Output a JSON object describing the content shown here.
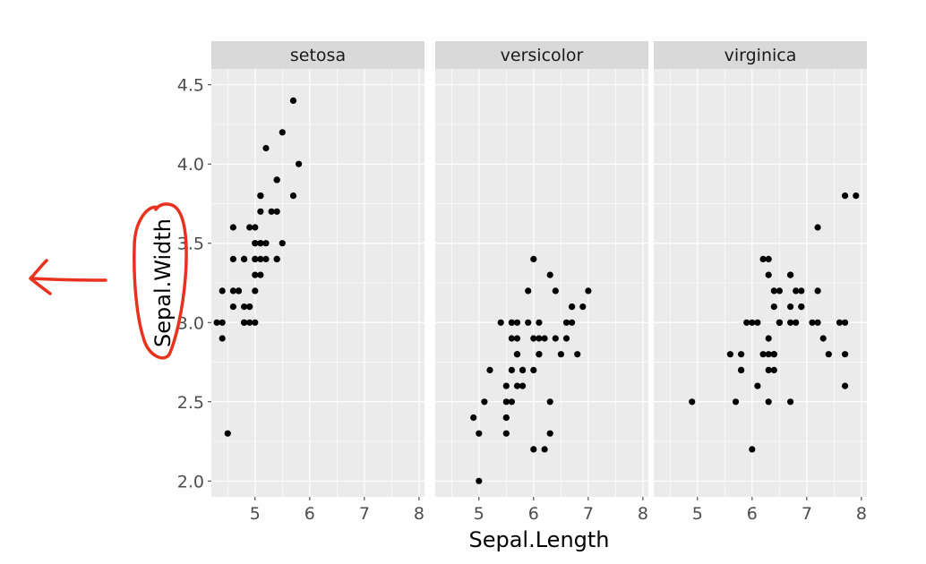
{
  "chart_data": {
    "type": "scatter",
    "facet_by": "Species",
    "xlabel": "Sepal.Length",
    "ylabel": "Sepal.Width",
    "xlim": [
      4.2,
      8.1
    ],
    "ylim": [
      1.9,
      4.6
    ],
    "x_ticks": [
      5,
      6,
      7,
      8
    ],
    "y_ticks": [
      2.0,
      2.5,
      3.0,
      3.5,
      4.0,
      4.5
    ],
    "y_tick_labels": [
      "2.0",
      "2.5",
      "3.0",
      "3.5",
      "4.0",
      "4.5"
    ],
    "grid": true,
    "point_color": "#000000",
    "panel_background": "#ebebeb",
    "strip_background": "#d9d9d9",
    "grid_color": "#ffffff",
    "panels": [
      {
        "label": "setosa",
        "points": [
          [
            5.1,
            3.5
          ],
          [
            4.9,
            3.0
          ],
          [
            4.7,
            3.2
          ],
          [
            4.6,
            3.1
          ],
          [
            5.0,
            3.6
          ],
          [
            5.4,
            3.9
          ],
          [
            4.6,
            3.4
          ],
          [
            5.0,
            3.4
          ],
          [
            4.4,
            2.9
          ],
          [
            4.9,
            3.1
          ],
          [
            5.4,
            3.7
          ],
          [
            4.8,
            3.4
          ],
          [
            4.8,
            3.0
          ],
          [
            4.3,
            3.0
          ],
          [
            5.8,
            4.0
          ],
          [
            5.7,
            4.4
          ],
          [
            5.4,
            3.9
          ],
          [
            5.1,
            3.5
          ],
          [
            5.7,
            3.8
          ],
          [
            5.1,
            3.8
          ],
          [
            5.4,
            3.4
          ],
          [
            5.1,
            3.7
          ],
          [
            4.6,
            3.6
          ],
          [
            5.1,
            3.3
          ],
          [
            4.8,
            3.4
          ],
          [
            5.0,
            3.0
          ],
          [
            5.0,
            3.4
          ],
          [
            5.2,
            3.5
          ],
          [
            5.2,
            3.4
          ],
          [
            4.7,
            3.2
          ],
          [
            4.8,
            3.1
          ],
          [
            5.4,
            3.4
          ],
          [
            5.2,
            4.1
          ],
          [
            5.5,
            4.2
          ],
          [
            4.9,
            3.1
          ],
          [
            5.0,
            3.2
          ],
          [
            5.5,
            3.5
          ],
          [
            4.9,
            3.6
          ],
          [
            4.4,
            3.0
          ],
          [
            5.1,
            3.4
          ],
          [
            5.0,
            3.5
          ],
          [
            4.5,
            2.3
          ],
          [
            4.4,
            3.2
          ],
          [
            5.0,
            3.5
          ],
          [
            5.1,
            3.8
          ],
          [
            4.8,
            3.0
          ],
          [
            5.1,
            3.8
          ],
          [
            4.6,
            3.2
          ],
          [
            5.3,
            3.7
          ],
          [
            5.0,
            3.3
          ]
        ]
      },
      {
        "label": "versicolor",
        "points": [
          [
            7.0,
            3.2
          ],
          [
            6.4,
            3.2
          ],
          [
            6.9,
            3.1
          ],
          [
            5.5,
            2.3
          ],
          [
            6.5,
            2.8
          ],
          [
            5.7,
            2.8
          ],
          [
            6.3,
            3.3
          ],
          [
            4.9,
            2.4
          ],
          [
            6.6,
            2.9
          ],
          [
            5.2,
            2.7
          ],
          [
            5.0,
            2.0
          ],
          [
            5.9,
            3.0
          ],
          [
            6.0,
            2.2
          ],
          [
            6.1,
            2.9
          ],
          [
            5.6,
            2.9
          ],
          [
            6.7,
            3.1
          ],
          [
            5.6,
            3.0
          ],
          [
            5.8,
            2.7
          ],
          [
            6.2,
            2.2
          ],
          [
            5.6,
            2.5
          ],
          [
            5.9,
            3.2
          ],
          [
            6.1,
            2.8
          ],
          [
            6.3,
            2.5
          ],
          [
            6.1,
            2.8
          ],
          [
            6.4,
            2.9
          ],
          [
            6.6,
            3.0
          ],
          [
            6.8,
            2.8
          ],
          [
            6.7,
            3.0
          ],
          [
            6.0,
            2.9
          ],
          [
            5.7,
            2.6
          ],
          [
            5.5,
            2.4
          ],
          [
            5.5,
            2.4
          ],
          [
            5.8,
            2.7
          ],
          [
            6.0,
            2.7
          ],
          [
            5.4,
            3.0
          ],
          [
            6.0,
            3.4
          ],
          [
            6.7,
            3.1
          ],
          [
            6.3,
            2.3
          ],
          [
            5.6,
            3.0
          ],
          [
            5.5,
            2.5
          ],
          [
            5.5,
            2.6
          ],
          [
            6.1,
            3.0
          ],
          [
            5.8,
            2.6
          ],
          [
            5.0,
            2.3
          ],
          [
            5.6,
            2.7
          ],
          [
            5.7,
            3.0
          ],
          [
            5.7,
            2.9
          ],
          [
            6.2,
            2.9
          ],
          [
            5.1,
            2.5
          ],
          [
            5.7,
            2.8
          ]
        ]
      },
      {
        "label": "virginica",
        "points": [
          [
            6.3,
            3.3
          ],
          [
            5.8,
            2.7
          ],
          [
            7.1,
            3.0
          ],
          [
            6.3,
            2.9
          ],
          [
            6.5,
            3.0
          ],
          [
            7.6,
            3.0
          ],
          [
            4.9,
            2.5
          ],
          [
            7.3,
            2.9
          ],
          [
            6.7,
            2.5
          ],
          [
            7.2,
            3.6
          ],
          [
            6.5,
            3.2
          ],
          [
            6.4,
            2.7
          ],
          [
            6.8,
            3.0
          ],
          [
            5.7,
            2.5
          ],
          [
            5.8,
            2.8
          ],
          [
            6.4,
            3.2
          ],
          [
            6.5,
            3.0
          ],
          [
            7.7,
            3.8
          ],
          [
            7.7,
            2.6
          ],
          [
            6.0,
            2.2
          ],
          [
            6.9,
            3.2
          ],
          [
            5.6,
            2.8
          ],
          [
            7.7,
            2.8
          ],
          [
            6.3,
            2.7
          ],
          [
            6.7,
            3.3
          ],
          [
            7.2,
            3.2
          ],
          [
            6.2,
            2.8
          ],
          [
            6.1,
            3.0
          ],
          [
            6.4,
            2.8
          ],
          [
            7.2,
            3.0
          ],
          [
            7.4,
            2.8
          ],
          [
            7.9,
            3.8
          ],
          [
            6.4,
            2.8
          ],
          [
            6.3,
            2.8
          ],
          [
            6.1,
            2.6
          ],
          [
            7.7,
            3.0
          ],
          [
            6.3,
            3.4
          ],
          [
            6.4,
            3.1
          ],
          [
            6.0,
            3.0
          ],
          [
            6.9,
            3.1
          ],
          [
            6.7,
            3.1
          ],
          [
            6.9,
            3.1
          ],
          [
            5.8,
            2.7
          ],
          [
            6.8,
            3.2
          ],
          [
            6.7,
            3.3
          ],
          [
            6.7,
            3.0
          ],
          [
            6.3,
            2.5
          ],
          [
            6.5,
            3.0
          ],
          [
            6.2,
            3.4
          ],
          [
            5.9,
            3.0
          ]
        ]
      }
    ]
  },
  "annotation": {
    "stroke_color": "#e8321e"
  }
}
